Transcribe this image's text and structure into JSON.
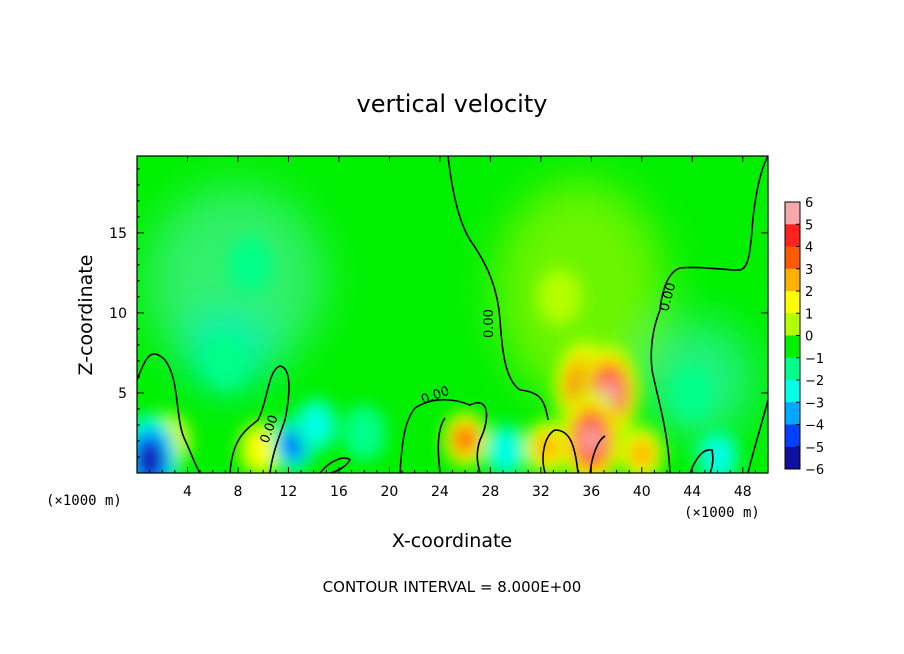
{
  "chart_data": {
    "type": "heatmap",
    "title": "vertical velocity",
    "xlabel": "X-coordinate",
    "ylabel": "Z-coordinate",
    "x_unit": "(×1000 m)",
    "y_unit": "(×1000 m)",
    "xlim": [
      0,
      50
    ],
    "ylim": [
      0,
      19.8
    ],
    "x_ticks": [
      4,
      8,
      12,
      16,
      20,
      24,
      28,
      32,
      36,
      40,
      44,
      48
    ],
    "y_ticks": [
      5,
      10,
      15
    ],
    "footer": "CONTOUR INTERVAL = 8.000E+00",
    "contour_label": "0.00",
    "colorbar": {
      "ticks": [
        6,
        5,
        4,
        3,
        2,
        1,
        0,
        -1,
        -2,
        -3,
        -4,
        -5,
        -6
      ],
      "tick_labels": [
        "6",
        "5",
        "4",
        "3",
        "2",
        "1",
        "0",
        "−1",
        "−2",
        "−3",
        "−4",
        "−5",
        "−6"
      ],
      "colors": [
        "#f7a8a8",
        "#ff2020",
        "#ff5a00",
        "#ffb000",
        "#ffff00",
        "#b4ff00",
        "#00f000",
        "#00ff88",
        "#00ffe6",
        "#00a8ff",
        "#0040ff",
        "#1010a0",
        "#7a20c0"
      ]
    },
    "features": [
      {
        "x": 2.5,
        "z": 2.0,
        "w": 3.2
      },
      {
        "x": 1.0,
        "z": 0.8,
        "w": -4.5
      },
      {
        "x": 9.8,
        "z": 1.5,
        "w": 1.8
      },
      {
        "x": 12.4,
        "z": 1.8,
        "w": -3.8
      },
      {
        "x": 14.2,
        "z": 3.0,
        "w": -2.0
      },
      {
        "x": 18.0,
        "z": 2.5,
        "w": -1.2
      },
      {
        "x": 26.0,
        "z": 2.1,
        "w": 3.6
      },
      {
        "x": 29.2,
        "z": 1.4,
        "w": -1.6
      },
      {
        "x": 32.5,
        "z": 1.6,
        "w": 3.2
      },
      {
        "x": 35.5,
        "z": 5.3,
        "w": 4.8
      },
      {
        "x": 37.4,
        "z": 5.0,
        "w": 5.5
      },
      {
        "x": 36.0,
        "z": 2.1,
        "w": 5.8
      },
      {
        "x": 33.5,
        "z": 11.0,
        "w": 1.4
      },
      {
        "x": 40.0,
        "z": 1.2,
        "w": 3.0
      },
      {
        "x": 46.0,
        "z": 1.0,
        "w": -2.2
      },
      {
        "x": 7.0,
        "z": 7.0,
        "w": -1.4
      },
      {
        "x": 9.0,
        "z": 13.0,
        "w": -0.8
      },
      {
        "x": 44.0,
        "z": 5.0,
        "w": -1.3
      }
    ]
  }
}
